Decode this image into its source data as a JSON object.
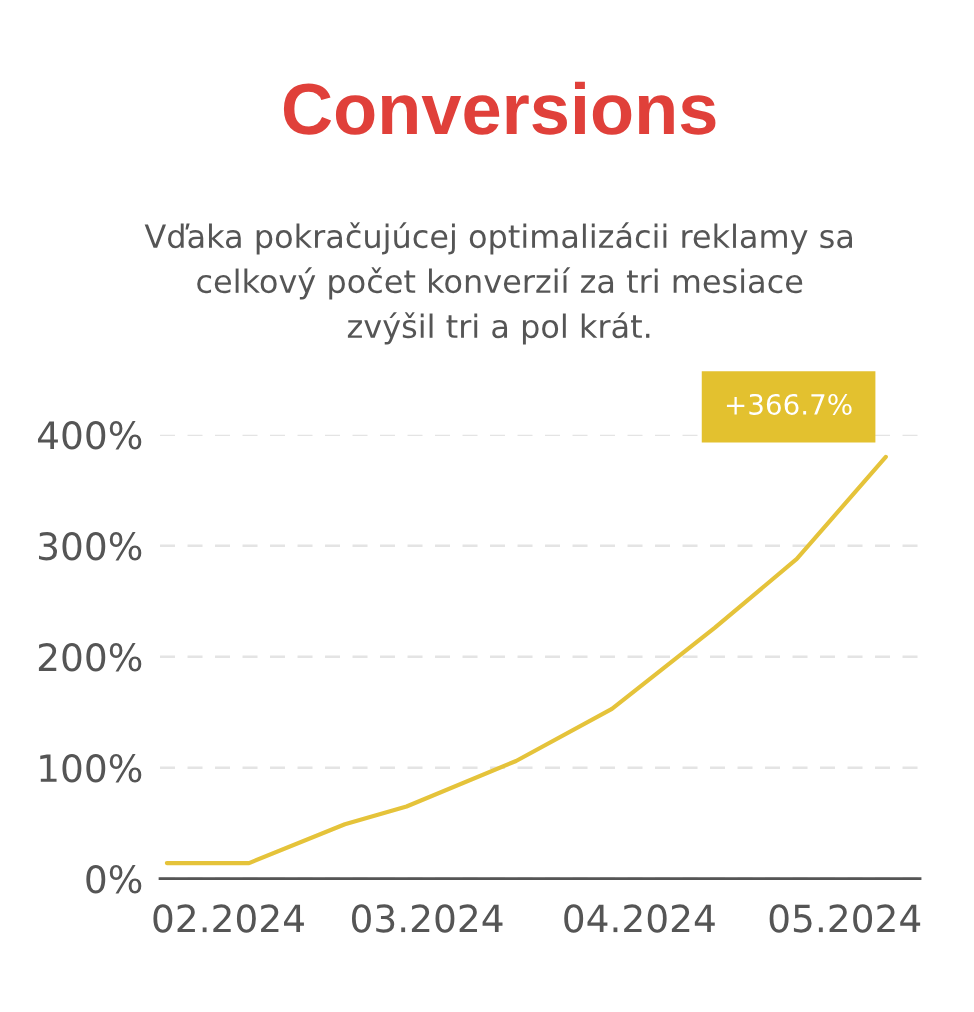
{
  "chart_data": {
    "type": "line",
    "title": "Conversions",
    "subtitle": "Vďaka pokračujúcej optimalizácii reklamy sa\ncelkový počet konverzií za tri mesiace\nzvýšil tri a pol krát.",
    "x": [
      "2024-01-23",
      "2024-02-04",
      "2024-02-18",
      "2024-02-27",
      "2024-03-14",
      "2024-03-28",
      "2024-04-12",
      "2024-04-24",
      "2024-05-07"
    ],
    "series": [
      {
        "color": "#e5c33a",
        "values": [
          14,
          14,
          49,
          65,
          106,
          153,
          226,
          288,
          380
        ]
      }
    ],
    "xlim": [
      "2024-01-22",
      "2024-05-12"
    ],
    "xticks": [
      {
        "value": "2024-02-01",
        "label": "02.2024"
      },
      {
        "value": "2024-03-01",
        "label": "03.2024"
      },
      {
        "value": "2024-04-01",
        "label": "04.2024"
      },
      {
        "value": "2024-05-01",
        "label": "05.2024"
      }
    ],
    "ylim": [
      0,
      400
    ],
    "yticks": [
      {
        "value": 0,
        "label": "0%"
      },
      {
        "value": 100,
        "label": "100%"
      },
      {
        "value": 200,
        "label": "200%"
      },
      {
        "value": 300,
        "label": "300%"
      },
      {
        "value": 400,
        "label": "400%"
      }
    ],
    "grid": "y",
    "marker": "none",
    "line_style": "solid",
    "annotations": [
      {
        "text": "+366.7%",
        "x": "2024-05-07",
        "y": 380
      }
    ]
  }
}
